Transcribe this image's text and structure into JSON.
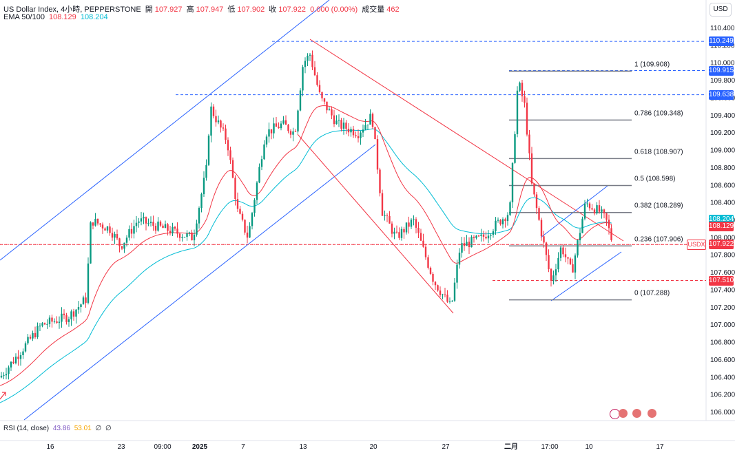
{
  "header": {
    "symbol": "US Dollar Index, 4小時, PEPPERSTONE",
    "open_label": "開",
    "open": "107.927",
    "high_label": "高",
    "high": "107.947",
    "low_label": "低",
    "low": "107.902",
    "close_label": "收",
    "close": "107.922",
    "change": "0.000 (0.00%)",
    "volume_label": "成交量",
    "volume": "462",
    "ema_label": "EMA 50/100",
    "ema50": "108.129",
    "ema100": "108.204"
  },
  "currency_button": "USD",
  "rsi": {
    "label": "RSI (14, close)",
    "v1": "43.86",
    "v2": "53.01",
    "v3": "∅",
    "v4": "∅"
  },
  "colors": {
    "up": "#089981",
    "down": "#f23645",
    "ema50": "#f23645",
    "ema100": "#00bcd4",
    "channel_blue": "#2962ff",
    "channel_red": "#f23645",
    "fib": "#131722"
  },
  "chart_data": {
    "type": "candlestick",
    "y_axis_ticks": [
      "110.400",
      "110.200",
      "110.000",
      "109.800",
      "109.600",
      "109.400",
      "109.200",
      "109.000",
      "108.800",
      "108.600",
      "108.400",
      "108.200",
      "108.000",
      "107.800",
      "107.600",
      "107.400",
      "107.200",
      "107.000",
      "106.800",
      "106.600",
      "106.400",
      "106.200",
      "106.000"
    ],
    "ylim": [
      105.9,
      110.6
    ],
    "x_axis_ticks": [
      "16",
      "23",
      "09:00",
      "2025",
      "7",
      "13",
      "20",
      "27",
      "二月",
      "17:00",
      "10",
      "17"
    ],
    "price_tags": [
      {
        "value": "110.249",
        "color": "#2962ff"
      },
      {
        "value": "109.915",
        "color": "#2962ff"
      },
      {
        "value": "109.638",
        "color": "#2962ff"
      },
      {
        "value": "108.204",
        "color": "#00bcd4"
      },
      {
        "value": "108.129",
        "color": "#f23645"
      },
      {
        "value": "107.922",
        "color": "#f23645"
      },
      {
        "value": "107.510",
        "color": "#f23645"
      }
    ],
    "symbol_tag": "USDX",
    "fib_levels": [
      {
        "label": "1 (109.908)",
        "value": 109.908
      },
      {
        "label": "0.786 (109.348)",
        "value": 109.348
      },
      {
        "label": "0.618 (108.907)",
        "value": 108.907
      },
      {
        "label": "0.5 (108.598)",
        "value": 108.598
      },
      {
        "label": "0.382 (108.289)",
        "value": 108.289
      },
      {
        "label": "0.236 (107.906)",
        "value": 107.906
      },
      {
        "label": "0 (107.288)",
        "value": 107.288
      }
    ],
    "hlines": [
      {
        "value": 110.249,
        "color": "#2962ff"
      },
      {
        "value": 109.915,
        "color": "#2962ff"
      },
      {
        "value": 109.638,
        "color": "#2962ff"
      },
      {
        "value": 107.922,
        "color": "#f23645"
      },
      {
        "value": 107.51,
        "color": "#f23645"
      }
    ],
    "series": [
      {
        "name": "EMA 50",
        "values": []
      },
      {
        "name": "EMA 100",
        "values": []
      }
    ]
  }
}
